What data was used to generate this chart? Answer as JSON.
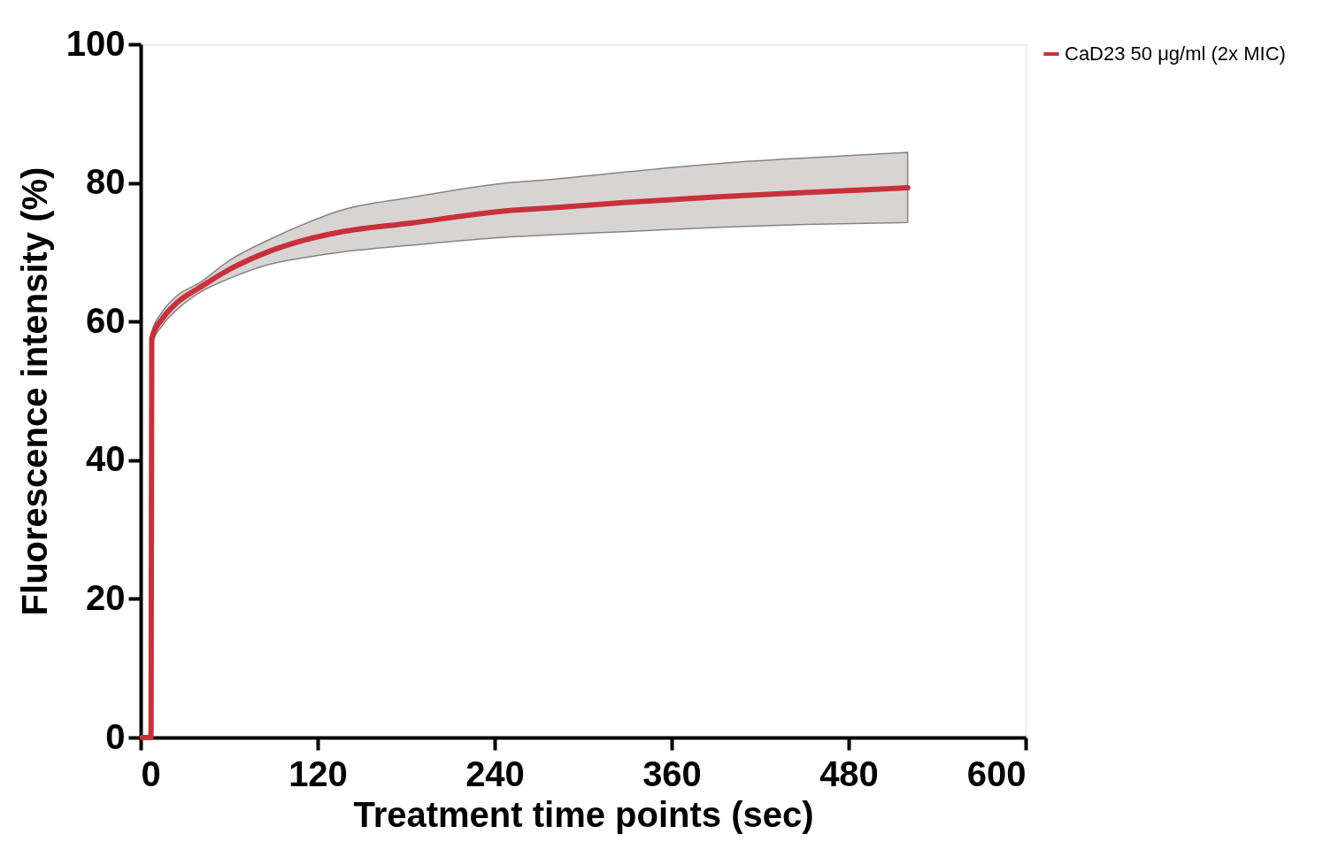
{
  "chart_data": {
    "type": "line",
    "xlabel": "Treatment time points (sec)",
    "ylabel": "Fluorescence intensity (%)",
    "xlim": [
      0,
      600
    ],
    "xticks": [
      0,
      120,
      240,
      360,
      480,
      600
    ],
    "ylim": [
      0,
      100
    ],
    "yticks": [
      0,
      20,
      40,
      60,
      80,
      100
    ],
    "grid": false,
    "legend": "right",
    "marker": "none",
    "line_style": "solid",
    "series": [
      {
        "name": "CaD23 50 μg/ml (2x MIC)",
        "color": "#c8313a",
        "x": [
          1,
          4,
          7,
          7.5,
          15,
          25,
          40,
          60,
          88,
          110,
          135,
          183,
          249,
          278,
          330,
          392,
          450,
          520
        ],
        "values": [
          0,
          0,
          0,
          57.6,
          60.5,
          62.8,
          64.9,
          67.5,
          70.2,
          71.7,
          72.9,
          74.2,
          76.0,
          76.4,
          77.2,
          78.0,
          78.6,
          79.3
        ],
        "upper": [
          0,
          0,
          0,
          58.5,
          61.5,
          63.8,
          65.6,
          68.8,
          71.9,
          74.0,
          76.0,
          77.9,
          80.0,
          80.5,
          81.6,
          82.8,
          83.6,
          84.4
        ],
        "lower": [
          0,
          0,
          0,
          56.6,
          59.5,
          61.8,
          64.2,
          66.2,
          68.3,
          69.2,
          70.0,
          71.0,
          72.2,
          72.5,
          73.0,
          73.6,
          74.0,
          74.3
        ]
      }
    ]
  }
}
